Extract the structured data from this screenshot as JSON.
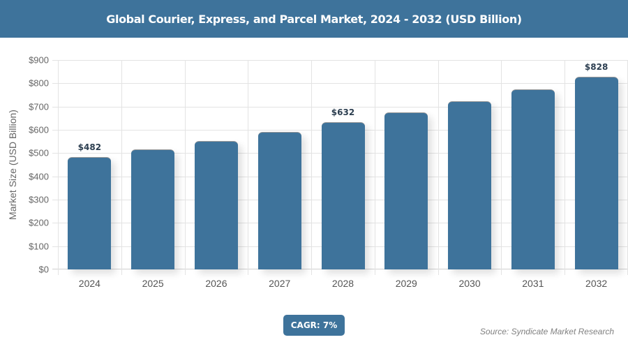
{
  "header": {
    "title": "Global Courier, Express, and Parcel Market, 2024 - 2032 (USD Billion)"
  },
  "chart_data": {
    "type": "bar",
    "title": "Global Courier, Express, and Parcel Market, 2024 - 2032 (USD Billion)",
    "xlabel": "",
    "ylabel": "Market Size (USD Billion)",
    "categories": [
      "2024",
      "2025",
      "2026",
      "2027",
      "2028",
      "2029",
      "2030",
      "2031",
      "2032"
    ],
    "values": [
      482,
      516,
      552,
      590,
      632,
      676,
      723,
      774,
      828
    ],
    "data_labels": {
      "0": "$482",
      "4": "$632",
      "8": "$828"
    },
    "ylim": [
      0,
      900
    ],
    "yticks": [
      "$0",
      "$100",
      "$200",
      "$300",
      "$400",
      "$500",
      "$600",
      "$700",
      "$800",
      "$900"
    ],
    "grid": true,
    "color": "#3e739b",
    "annotations": [
      "CAGR: 7%",
      "Source: Syndicate Market Research"
    ]
  },
  "footer": {
    "cagr_label": "CAGR: 7%",
    "source": "Source: Syndicate Market Research"
  },
  "colors": {
    "brand": "#3e739b"
  }
}
